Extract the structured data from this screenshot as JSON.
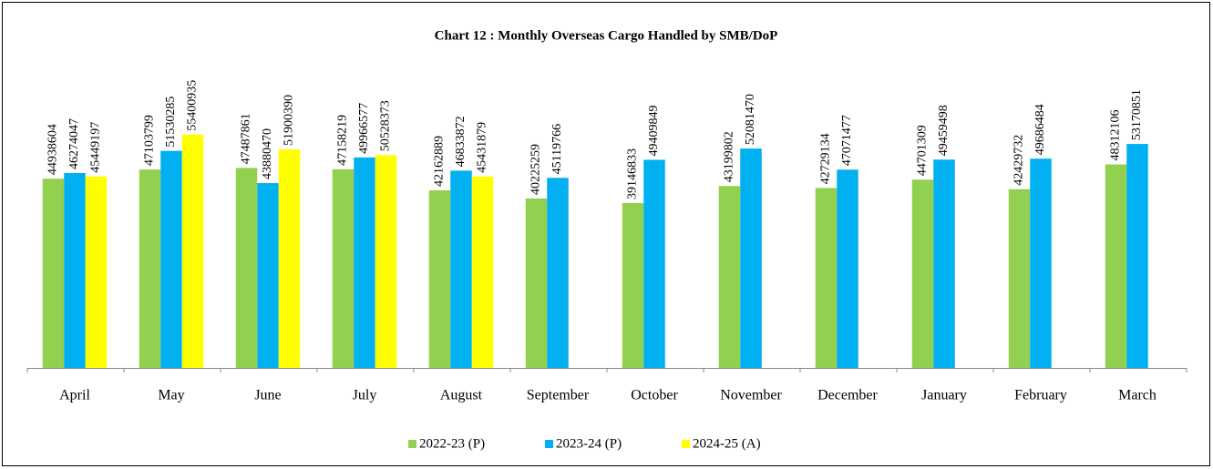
{
  "chart_data": {
    "type": "bar",
    "title": "Chart 12 : Monthly Overseas Cargo Handled by SMB/DoP",
    "categories": [
      "April",
      "May",
      "June",
      "July",
      "August",
      "September",
      "October",
      "November",
      "December",
      "January",
      "February",
      "March"
    ],
    "series": [
      {
        "name": "2022-23 (P)",
        "color": "#92d050",
        "values": [
          44938604,
          47103799,
          47487861,
          47158219,
          42162889,
          40225259,
          39146833,
          43199802,
          42729134,
          44701309,
          42429732,
          48312106
        ]
      },
      {
        "name": "2023-24 (P)",
        "color": "#00b0f0",
        "values": [
          46274047,
          51530285,
          43880470,
          49966577,
          46833872,
          45119766,
          49409849,
          52081470,
          47071477,
          49459498,
          49686484,
          53170851
        ]
      },
      {
        "name": "2024-25 (A)",
        "color": "#ffff00",
        "values": [
          45449197,
          55400935,
          51900390,
          50528373,
          45431879,
          null,
          null,
          null,
          null,
          null,
          null,
          null
        ]
      }
    ],
    "ylim": [
      0,
      80000000
    ],
    "legend": "bottom"
  }
}
